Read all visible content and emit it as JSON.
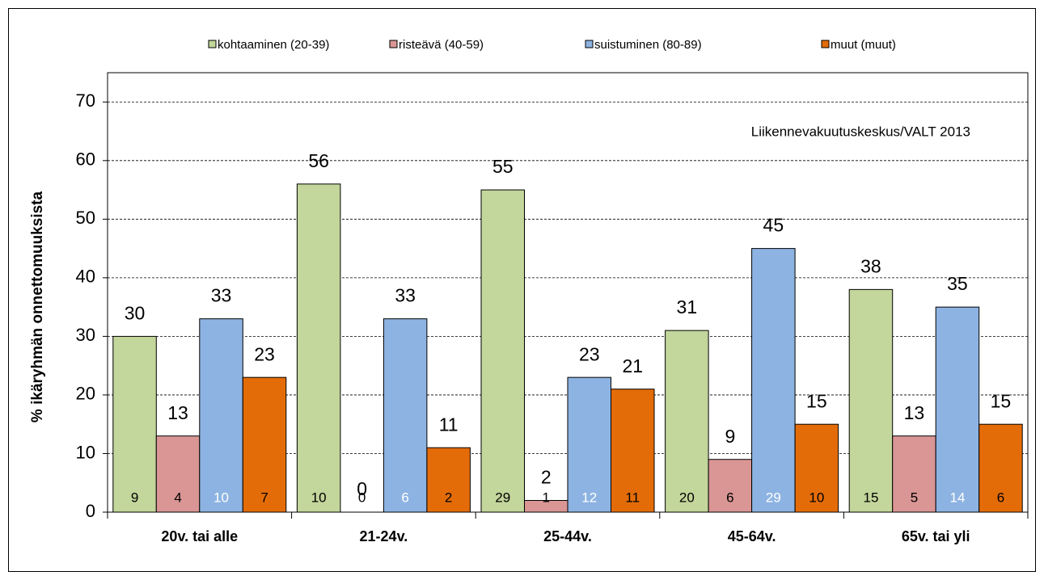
{
  "chart_data": {
    "type": "bar",
    "annotation": "Liikennevakuutuskeskus/VALT 2013",
    "y_label": "% ikäryhmän onnettomuuksista",
    "categories": [
      "20v. tai alle",
      "21-24v.",
      "25-44v.",
      "45-64v.",
      "65v. tai yli"
    ],
    "series": [
      {
        "name": "kohtaaminen (20-39)",
        "color": "#c3d69b",
        "count_color": "#000000",
        "values": [
          30,
          56,
          55,
          31,
          38
        ],
        "counts": [
          9,
          10,
          29,
          20,
          15
        ]
      },
      {
        "name": "risteävä (40-59)",
        "color": "#d99694",
        "count_color": "#000000",
        "values": [
          13,
          0,
          2,
          9,
          13
        ],
        "counts": [
          4,
          0,
          1,
          6,
          5
        ]
      },
      {
        "name": "suistuminen (80-89)",
        "color": "#8db3e2",
        "count_color": "#ffffff",
        "values": [
          33,
          33,
          23,
          45,
          35
        ],
        "counts": [
          10,
          6,
          12,
          29,
          14
        ]
      },
      {
        "name": "muut (muut)",
        "color": "#e36c09",
        "count_color": "#000000",
        "values": [
          23,
          11,
          21,
          15,
          15
        ],
        "counts": [
          7,
          2,
          11,
          10,
          6
        ]
      }
    ],
    "ylim": [
      0,
      75
    ],
    "yticks": [
      0,
      10,
      20,
      30,
      40,
      50,
      60,
      70
    ],
    "grid": true
  }
}
